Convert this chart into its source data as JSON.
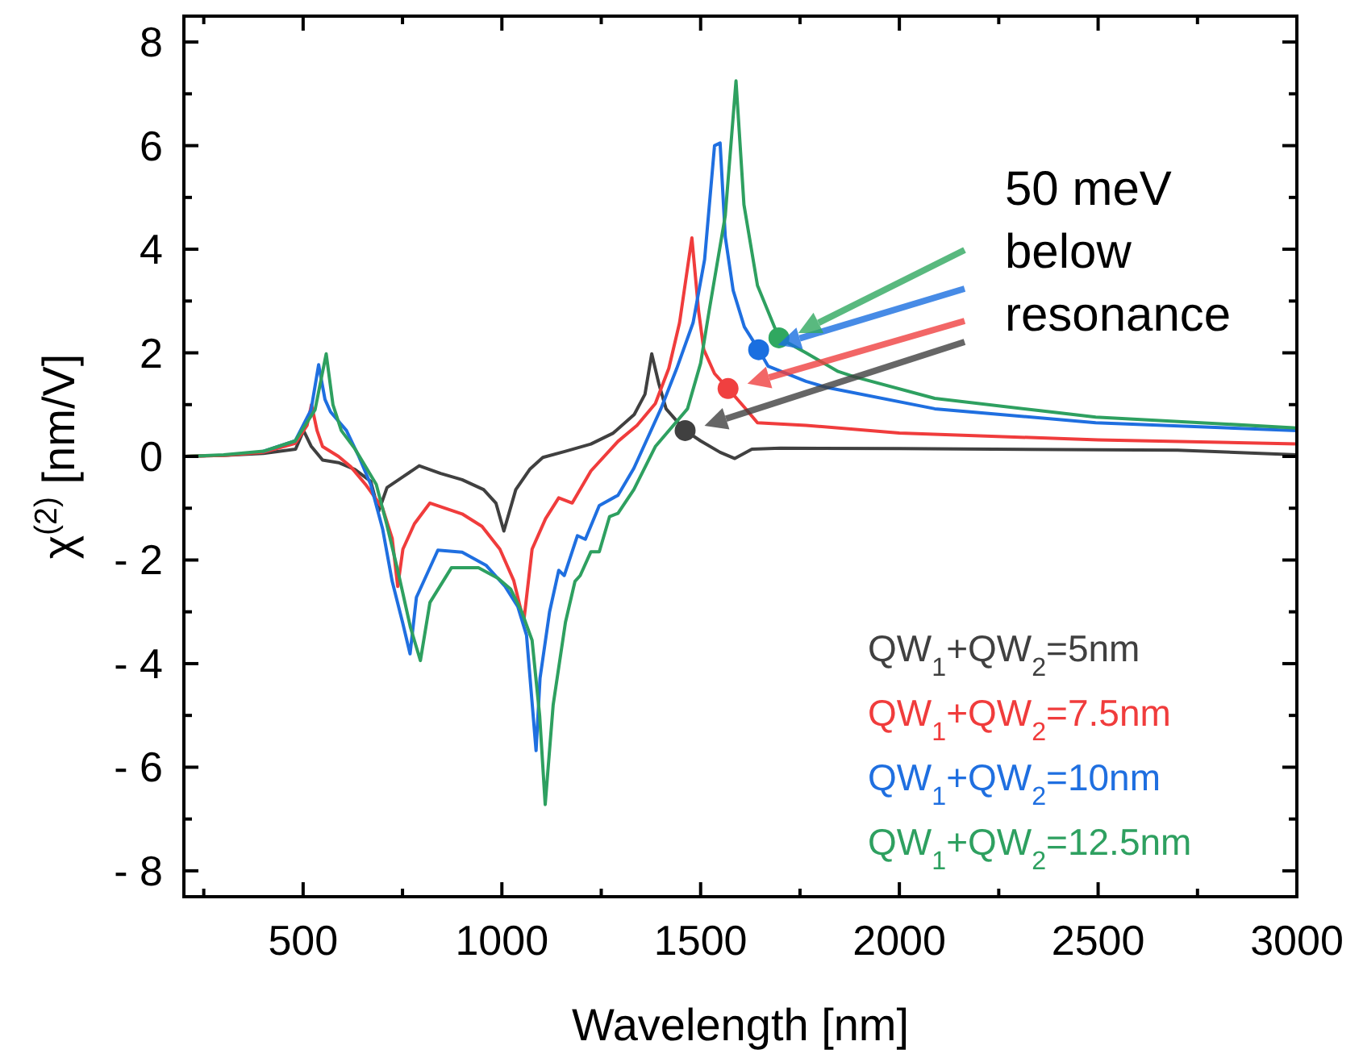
{
  "chart_data": {
    "type": "line",
    "xlabel": "Wavelength [nm]",
    "ylabel": "χ$^{(2)}$ [nm/V]",
    "xlim": [
      200,
      3000
    ],
    "ylim": [
      -8.5,
      8.5
    ],
    "xticks": [
      {
        "value": 250,
        "label": null
      },
      500,
      {
        "value": 750,
        "label": null
      },
      1000,
      {
        "value": 1250,
        "label": null
      },
      1500,
      {
        "value": 1750,
        "label": null
      },
      2000,
      {
        "value": 2250,
        "label": null
      },
      2500,
      {
        "value": 2750,
        "label": null
      },
      3000
    ],
    "yticks": [
      {
        "value": -8,
        "label": "- 8"
      },
      {
        "value": -7,
        "label": null
      },
      {
        "value": -6,
        "label": "- 6"
      },
      {
        "value": -5,
        "label": null
      },
      {
        "value": -4,
        "label": "- 4"
      },
      {
        "value": -3,
        "label": null
      },
      {
        "value": -2,
        "label": "- 2"
      },
      {
        "value": -1,
        "label": null
      },
      0,
      {
        "value": 1,
        "label": null
      },
      2,
      {
        "value": 3,
        "label": null
      },
      4,
      {
        "value": 5,
        "label": null
      },
      6,
      {
        "value": 7,
        "label": null
      },
      8
    ],
    "grid": false,
    "legend": "bottom right",
    "annotations": [
      "50 meV\nbelow\nresonance"
    ],
    "series": [
      {
        "name": "QW$_{1}$+QW$_{2}$=5nm",
        "color": "#404040",
        "x": [
          200,
          300,
          400,
          481,
          501,
          520,
          549,
          589,
          630,
          670,
          690,
          711,
          750,
          792,
          846,
          900,
          954,
          985,
          1005,
          1035,
          1070,
          1103,
          1160,
          1224,
          1280,
          1333,
          1360,
          1377,
          1395,
          1413,
          1461,
          1500,
          1549,
          1586,
          1629,
          1700,
          2000,
          2500,
          2700,
          3000
        ],
        "values": [
          0,
          0.02,
          0.06,
          0.14,
          0.5,
          0.2,
          -0.07,
          -0.12,
          -0.25,
          -0.48,
          -1.06,
          -0.6,
          -0.4,
          -0.18,
          -0.33,
          -0.45,
          -0.64,
          -0.9,
          -1.44,
          -0.64,
          -0.25,
          -0.02,
          0.1,
          0.24,
          0.45,
          0.81,
          1.2,
          1.98,
          1.4,
          0.92,
          0.5,
          0.3,
          0.08,
          -0.04,
          0.14,
          0.16,
          0.15,
          0.13,
          0.12,
          0.03
        ]
      },
      {
        "name": "QW$_{1}$+QW$_{2}$=7.5nm",
        "color": "#f03c3c",
        "x": [
          200,
          300,
          400,
          480,
          510,
          521,
          535,
          549,
          589,
          620,
          657,
          700,
          724,
          738,
          751,
          780,
          819,
          900,
          950,
          995,
          1030,
          1055,
          1076,
          1110,
          1143,
          1177,
          1224,
          1292,
          1340,
          1386,
          1420,
          1447,
          1478,
          1495,
          1508,
          1535,
          1569,
          1610,
          1643,
          1765,
          2000,
          2500,
          3000
        ],
        "values": [
          0,
          0.02,
          0.08,
          0.25,
          0.6,
          1.0,
          0.5,
          0.19,
          0,
          -0.2,
          -0.54,
          -1.0,
          -1.58,
          -2.51,
          -1.79,
          -1.3,
          -0.9,
          -1.11,
          -1.35,
          -1.79,
          -2.4,
          -3.19,
          -1.79,
          -1.2,
          -0.8,
          -0.9,
          -0.28,
          0.29,
          0.6,
          1.02,
          1.7,
          2.58,
          4.22,
          2.8,
          2.06,
          1.6,
          1.31,
          0.95,
          0.65,
          0.6,
          0.45,
          0.32,
          0.24
        ]
      },
      {
        "name": "QW$_{1}$+QW$_{2}$=10nm",
        "color": "#1f6fe0",
        "x": [
          400,
          480,
          520,
          539,
          555,
          569,
          609,
          640,
          670,
          700,
          724,
          750,
          769,
          785,
          839,
          900,
          960,
          1008,
          1040,
          1062,
          1086,
          1096,
          1120,
          1143,
          1157,
          1190,
          1210,
          1245,
          1292,
          1332,
          1400,
          1440,
          1481,
          1510,
          1535,
          1549,
          1562,
          1582,
          1610,
          1646,
          1670,
          1765,
          1818,
          2089,
          2494,
          3000
        ],
        "values": [
          0.1,
          0.3,
          0.9,
          1.77,
          1.1,
          0.86,
          0.5,
          0,
          -0.54,
          -1.4,
          -2.41,
          -3.2,
          -3.81,
          -2.72,
          -1.81,
          -1.85,
          -2.1,
          -2.51,
          -2.9,
          -3.45,
          -5.68,
          -4.28,
          -3.0,
          -2.2,
          -2.3,
          -1.53,
          -1.6,
          -0.95,
          -0.75,
          -0.23,
          0.92,
          1.7,
          2.58,
          3.8,
          6.0,
          6.05,
          4.24,
          3.2,
          2.5,
          2.06,
          1.74,
          1.45,
          1.33,
          0.92,
          0.65,
          0.5
        ]
      },
      {
        "name": "QW$_{1}$+QW$_{2}$=12.5nm",
        "color": "#2ea060",
        "x": [
          200,
          300,
          400,
          480,
          530,
          558,
          575,
          596,
          630,
          684,
          710,
          738,
          770,
          795,
          819,
          873,
          941,
          990,
          1022,
          1050,
          1076,
          1095,
          1109,
          1129,
          1160,
          1184,
          1197,
          1224,
          1245,
          1271,
          1292,
          1332,
          1386,
          1467,
          1500,
          1521,
          1562,
          1589,
          1609,
          1643,
          1697,
          1765,
          1846,
          1886,
          2089,
          2494,
          3000
        ],
        "values": [
          0,
          0.03,
          0.1,
          0.3,
          0.9,
          1.98,
          1.0,
          0.5,
          0.15,
          -0.54,
          -1.3,
          -2.2,
          -3.3,
          -3.94,
          -2.82,
          -2.15,
          -2.15,
          -2.35,
          -2.56,
          -3.0,
          -3.55,
          -5.0,
          -6.72,
          -4.8,
          -3.2,
          -2.41,
          -2.3,
          -1.84,
          -1.84,
          -1.16,
          -1.1,
          -0.64,
          0.19,
          0.92,
          1.8,
          2.79,
          4.65,
          7.25,
          4.86,
          3.3,
          2.29,
          2.0,
          1.64,
          1.54,
          1.12,
          0.76,
          0.55
        ]
      },
      {
        "type": "scatter",
        "marker": "circle",
        "color": "#404040",
        "x": [
          1461
        ],
        "values": [
          0.5
        ]
      },
      {
        "type": "scatter",
        "marker": "circle",
        "color": "#f04040",
        "x": [
          1569
        ],
        "values": [
          1.31
        ]
      },
      {
        "type": "scatter",
        "marker": "circle",
        "color": "#1a6fe0",
        "x": [
          1646
        ],
        "values": [
          2.06
        ]
      },
      {
        "type": "scatter",
        "marker": "circle",
        "color": "#30a860",
        "x": [
          1697
        ],
        "values": [
          2.29
        ]
      }
    ]
  }
}
